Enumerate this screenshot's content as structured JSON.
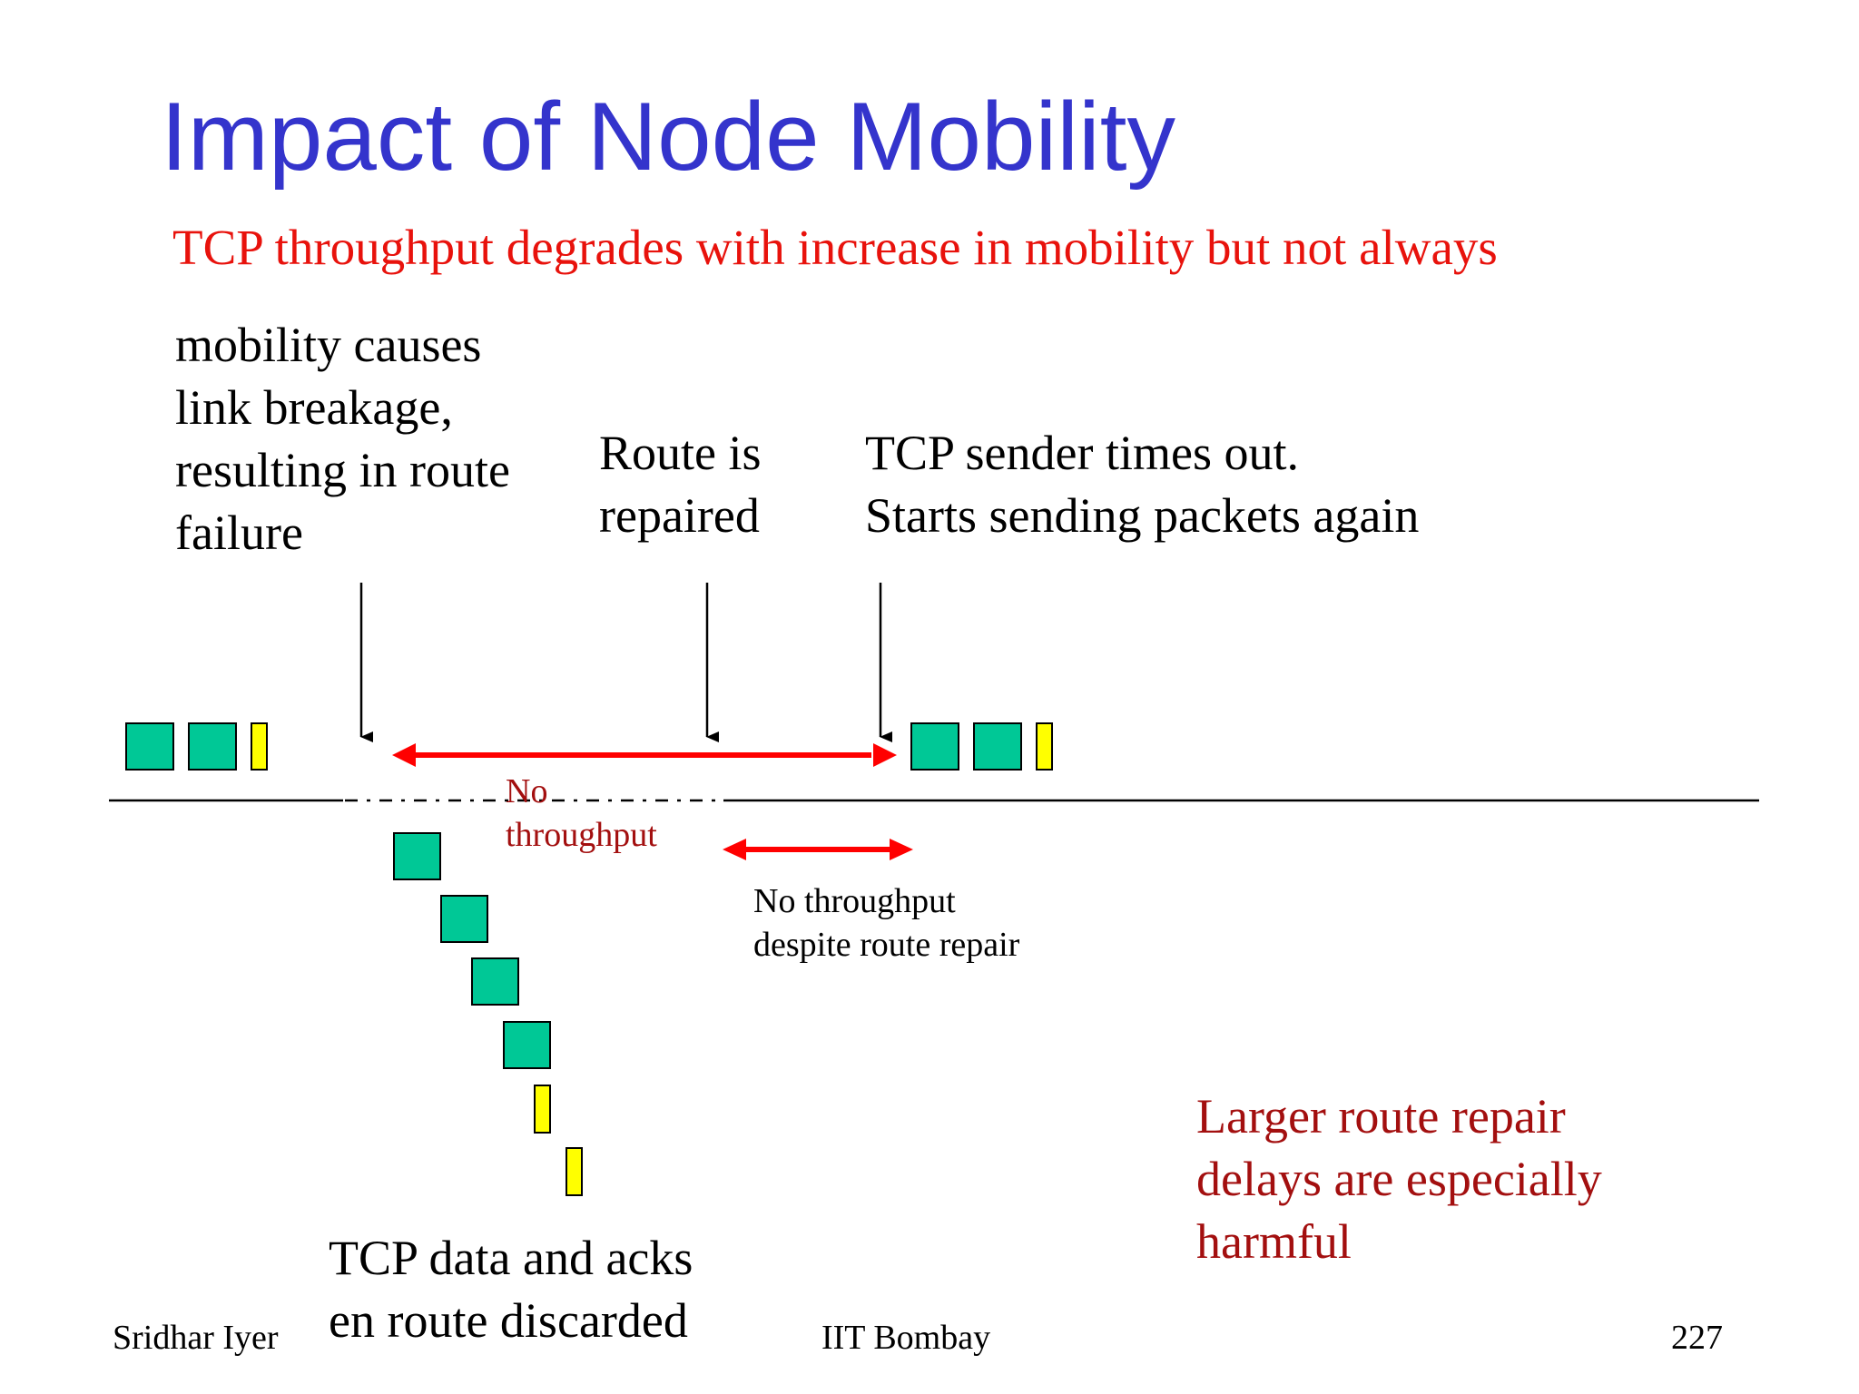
{
  "slide": {
    "title": "Impact of Node Mobility",
    "subtitle": "TCP throughput degrades with increase in mobility but not always"
  },
  "annotations": {
    "link_break": [
      "mobility causes",
      "link breakage,",
      "resulting in route",
      "failure"
    ],
    "route_repaired": [
      "Route is",
      "repaired"
    ],
    "timeout": [
      "TCP sender times out.",
      "Starts sending packets again"
    ],
    "no_throughput": [
      "No",
      "throughput"
    ],
    "no_throughput_repair": [
      "No throughput",
      "despite route repair"
    ],
    "discarded": [
      "TCP data and acks",
      "en route discarded"
    ],
    "delays": [
      "Larger route repair",
      "delays are especially",
      "harmful"
    ]
  },
  "footer": {
    "author": "Sridhar Iyer",
    "institution": "IIT Bombay",
    "page": "227"
  },
  "colors": {
    "title": "#3434cc",
    "subtitle": "#e8120c",
    "note": "#a30f0f",
    "packet": "#00c896",
    "ack": "#ffff00",
    "arrow": "#ff0000"
  }
}
